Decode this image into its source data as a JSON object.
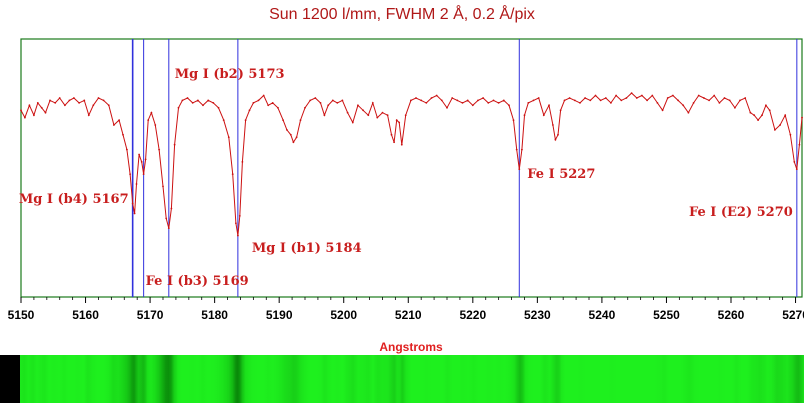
{
  "chart_data": {
    "type": "line",
    "title": "Sun 1200 l/mm, FWHM 2 Å, 0.2 Å/pix",
    "xlabel": "Angstroms",
    "ylabel": "",
    "xlim": [
      5150,
      5271
    ],
    "ylim": [
      0,
      1.05
    ],
    "x_ticks": [
      5150,
      5160,
      5170,
      5180,
      5190,
      5200,
      5210,
      5220,
      5230,
      5240,
      5250,
      5260,
      5270
    ],
    "x_tick_labels": [
      "5150",
      "5160",
      "5170",
      "5180",
      "5190",
      "5200",
      "5210",
      "5220",
      "5230",
      "5240",
      "5250",
      "5260",
      "5270"
    ],
    "grid": false,
    "continuum": 0.8,
    "series": [
      {
        "color": "#cc1111",
        "x": [
          5150,
          5150.6,
          5151.3,
          5152,
          5152.6,
          5153.2,
          5153.8,
          5154.5,
          5155.3,
          5156,
          5156.8,
          5157.5,
          5158.2,
          5159,
          5159.8,
          5160.5,
          5161.2,
          5162,
          5162.8,
          5163.6,
          5164.4,
          5165.2,
          5165.8,
          5166.4,
          5166.9,
          5167.3,
          5167.6,
          5167.9,
          5168.3,
          5168.7,
          5169,
          5169.3,
          5169.7,
          5170.2,
          5170.8,
          5171.4,
          5172,
          5172.5,
          5172.9,
          5173.3,
          5173.8,
          5174.4,
          5175,
          5175.8,
          5176.6,
          5177.4,
          5178.2,
          5179,
          5179.8,
          5180.6,
          5181.4,
          5182.2,
          5182.8,
          5183.3,
          5183.6,
          5183.9,
          5184.3,
          5184.8,
          5185.4,
          5186,
          5186.8,
          5187.6,
          5188.3,
          5189,
          5189.8,
          5190.6,
          5191.2,
          5191.8,
          5192.2,
          5192.7,
          5193.3,
          5194,
          5194.8,
          5195.6,
          5196.4,
          5197,
          5197.6,
          5198.3,
          5199,
          5199.8,
          5200.6,
          5201.4,
          5202.2,
          5203,
          5203.8,
          5204.5,
          5205.2,
          5206,
          5206.8,
          5207.4,
          5207.8,
          5208.2,
          5208.6,
          5209,
          5209.6,
          5210.4,
          5211.2,
          5212,
          5212.8,
          5213.6,
          5214.4,
          5215.2,
          5216,
          5216.8,
          5217.6,
          5218.4,
          5219.2,
          5220,
          5220.8,
          5221.6,
          5222.4,
          5223.2,
          5224,
          5224.8,
          5225.6,
          5226.3,
          5226.8,
          5227.2,
          5227.6,
          5228,
          5228.6,
          5229.4,
          5230.2,
          5231,
          5231.8,
          5232.4,
          5232.8,
          5233.2,
          5233.6,
          5234.2,
          5235,
          5235.8,
          5236.6,
          5237.4,
          5238.2,
          5239,
          5239.8,
          5240.6,
          5241.4,
          5242.2,
          5243,
          5243.8,
          5244.6,
          5245.4,
          5246.2,
          5247,
          5247.8,
          5248.6,
          5249.4,
          5250.2,
          5251,
          5251.8,
          5252.6,
          5253.4,
          5254.2,
          5255,
          5255.8,
          5256.6,
          5257.4,
          5258.2,
          5259,
          5259.8,
          5260.6,
          5261.4,
          5262.2,
          5263,
          5263.6,
          5264.2,
          5264.8,
          5265.4,
          5266,
          5266.8,
          5267.6,
          5268.4,
          5269.2,
          5269.8,
          5270.2,
          5270.6,
          5271
        ],
        "y": [
          0.76,
          0.73,
          0.78,
          0.74,
          0.79,
          0.77,
          0.75,
          0.8,
          0.79,
          0.81,
          0.78,
          0.8,
          0.81,
          0.79,
          0.8,
          0.74,
          0.78,
          0.81,
          0.8,
          0.78,
          0.7,
          0.72,
          0.66,
          0.6,
          0.5,
          0.38,
          0.34,
          0.46,
          0.58,
          0.55,
          0.5,
          0.56,
          0.72,
          0.75,
          0.7,
          0.6,
          0.45,
          0.32,
          0.28,
          0.36,
          0.62,
          0.77,
          0.8,
          0.81,
          0.79,
          0.8,
          0.78,
          0.8,
          0.79,
          0.77,
          0.72,
          0.65,
          0.5,
          0.3,
          0.25,
          0.33,
          0.55,
          0.72,
          0.76,
          0.79,
          0.8,
          0.82,
          0.78,
          0.79,
          0.77,
          0.72,
          0.68,
          0.66,
          0.63,
          0.65,
          0.72,
          0.77,
          0.8,
          0.81,
          0.79,
          0.74,
          0.78,
          0.8,
          0.79,
          0.8,
          0.75,
          0.71,
          0.78,
          0.76,
          0.74,
          0.79,
          0.73,
          0.75,
          0.74,
          0.66,
          0.63,
          0.72,
          0.71,
          0.62,
          0.74,
          0.8,
          0.81,
          0.8,
          0.79,
          0.81,
          0.82,
          0.8,
          0.77,
          0.81,
          0.8,
          0.79,
          0.8,
          0.78,
          0.8,
          0.81,
          0.79,
          0.8,
          0.79,
          0.8,
          0.78,
          0.72,
          0.6,
          0.52,
          0.6,
          0.74,
          0.79,
          0.8,
          0.81,
          0.74,
          0.78,
          0.7,
          0.64,
          0.66,
          0.76,
          0.8,
          0.81,
          0.8,
          0.79,
          0.81,
          0.8,
          0.82,
          0.8,
          0.81,
          0.79,
          0.82,
          0.8,
          0.81,
          0.83,
          0.81,
          0.82,
          0.8,
          0.82,
          0.79,
          0.76,
          0.81,
          0.82,
          0.8,
          0.78,
          0.75,
          0.79,
          0.82,
          0.81,
          0.8,
          0.82,
          0.79,
          0.81,
          0.8,
          0.77,
          0.8,
          0.81,
          0.75,
          0.74,
          0.72,
          0.74,
          0.78,
          0.76,
          0.68,
          0.7,
          0.74,
          0.66,
          0.55,
          0.52,
          0.62,
          0.73
        ]
      }
    ],
    "markers": [
      {
        "label": "Mg I (b4) 5167",
        "x": 5167.3
      },
      {
        "label": "Fe I (b3) 5169",
        "x": 5169
      },
      {
        "label": "Mg I (b2) 5173",
        "x": 5172.9
      },
      {
        "label": "Mg I (b1) 5184",
        "x": 5183.6
      },
      {
        "label": "Fe I 5227",
        "x": 5227.2
      },
      {
        "label": "Fe I (E2) 5270",
        "x": 5270.2
      }
    ],
    "colors": {
      "plot_frame": "#1a7a1a",
      "data_line": "#cc1111",
      "marker_line": "#3030dd",
      "annotation_text": "#c81e1e",
      "title_text": "#b01818",
      "xlabel_text": "#e02020",
      "strip_green": "#22dd22"
    }
  }
}
